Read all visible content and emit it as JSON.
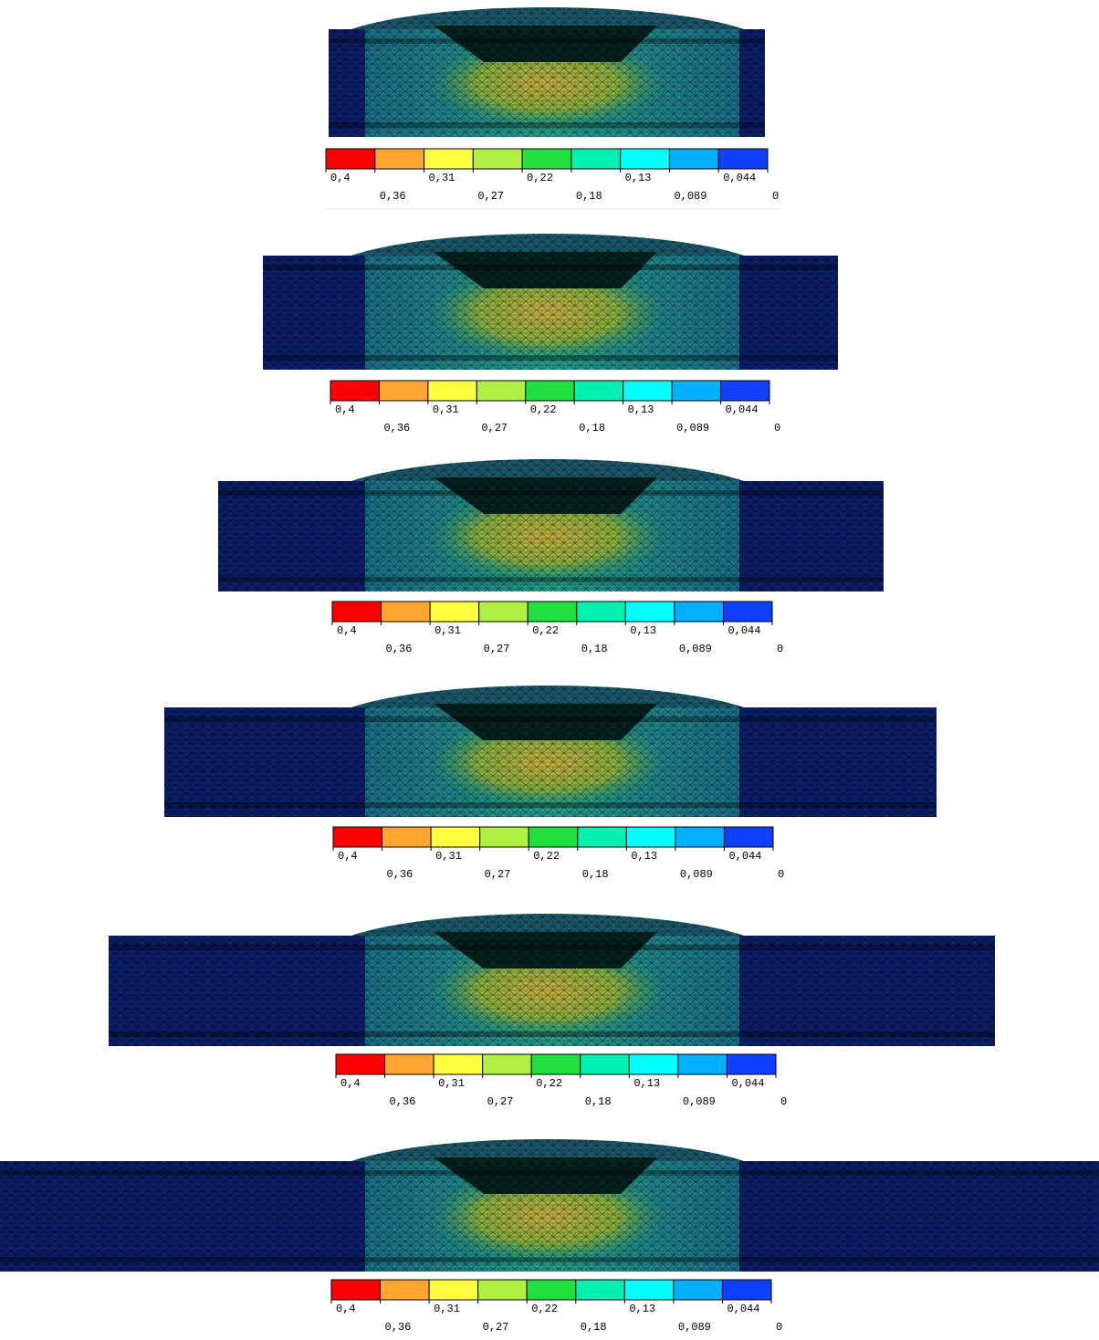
{
  "colorbar_colors": [
    "#ff0000",
    "#ffa530",
    "#ffff40",
    "#b0f040",
    "#20e040",
    "#00f0b0",
    "#00ffff",
    "#00b0ff",
    "#1040ff"
  ],
  "panels": [
    {
      "labels": [
        "0,4",
        "0,36",
        "0,31",
        "0,27",
        "0,22",
        "0,18",
        "0,13",
        "0,089",
        "0,044",
        "0"
      ]
    },
    {
      "labels": [
        "0,4",
        "0,36",
        "0,31",
        "0,27",
        "0,22",
        "0,18",
        "0,13",
        "0,089",
        "0,044",
        "0"
      ]
    },
    {
      "labels": [
        "0,4",
        "0,36",
        "0,31",
        "0,27",
        "0,22",
        "0,18",
        "0,13",
        "0,089",
        "0,044",
        "0"
      ]
    },
    {
      "labels": [
        "0,4",
        "0,36",
        "0,31",
        "0,27",
        "0,22",
        "0,18",
        "0,13",
        "0,089",
        "0,044",
        "0"
      ]
    },
    {
      "labels": [
        "0,4",
        "0,36",
        "0,31",
        "0,27",
        "0,22",
        "0,18",
        "0,13",
        "0,089",
        "0,044",
        "0"
      ]
    },
    {
      "labels": [
        "0,4",
        "0,36",
        "0,31",
        "0,27",
        "0,22",
        "0,18",
        "0,13",
        "0,089",
        "0,044",
        "0"
      ]
    }
  ]
}
